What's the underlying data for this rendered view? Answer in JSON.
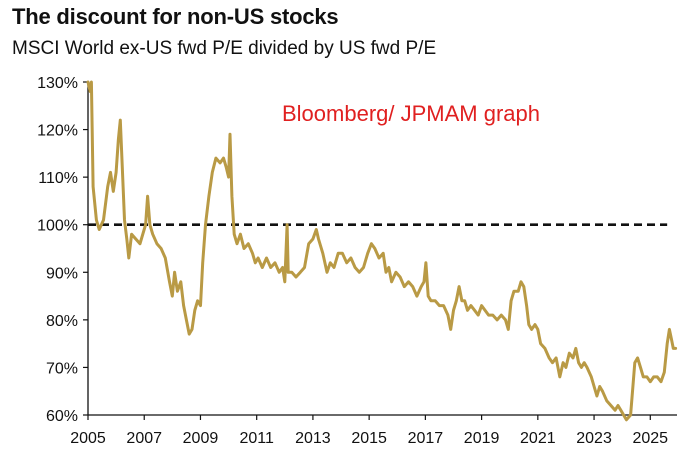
{
  "chart_data": {
    "type": "line",
    "title": "The discount for non-US stocks",
    "subtitle": "MSCI World ex-US fwd P/E divided by US fwd P/E",
    "annotation": "Bloomberg/ JPMAM graph",
    "xlabel": "",
    "ylabel": "",
    "xlim": [
      2005,
      2025.95
    ],
    "ylim": [
      60,
      130
    ],
    "x_ticks": [
      2005,
      2007,
      2009,
      2011,
      2013,
      2015,
      2017,
      2019,
      2021,
      2023,
      2025
    ],
    "y_ticks": [
      60,
      70,
      80,
      90,
      100,
      110,
      120,
      130
    ],
    "y_tick_labels": [
      "60%",
      "70%",
      "80%",
      "90%",
      "100%",
      "110%",
      "120%",
      "130%"
    ],
    "reference_line": {
      "y": 100,
      "style": "dashed"
    },
    "grid": false,
    "legend": "none",
    "colors": {
      "series": "#b99a45",
      "reference": "#111111",
      "annotation": "#e02020",
      "text": "#111111"
    },
    "series": [
      {
        "values": [
          [
            2005.0,
            130
          ],
          [
            2005.08,
            128
          ],
          [
            2005.12,
            130
          ],
          [
            2005.18,
            108
          ],
          [
            2005.3,
            101
          ],
          [
            2005.4,
            99
          ],
          [
            2005.55,
            101
          ],
          [
            2005.7,
            108
          ],
          [
            2005.8,
            111
          ],
          [
            2005.9,
            107
          ],
          [
            2006.0,
            111
          ],
          [
            2006.08,
            118
          ],
          [
            2006.15,
            122
          ],
          [
            2006.22,
            112
          ],
          [
            2006.3,
            101
          ],
          [
            2006.38,
            97
          ],
          [
            2006.45,
            93
          ],
          [
            2006.55,
            98
          ],
          [
            2006.7,
            97
          ],
          [
            2006.85,
            96
          ],
          [
            2006.95,
            98
          ],
          [
            2007.05,
            100
          ],
          [
            2007.12,
            106
          ],
          [
            2007.2,
            100
          ],
          [
            2007.3,
            98
          ],
          [
            2007.45,
            96
          ],
          [
            2007.6,
            95
          ],
          [
            2007.75,
            93
          ],
          [
            2007.9,
            88
          ],
          [
            2008.0,
            85
          ],
          [
            2008.08,
            90
          ],
          [
            2008.18,
            86
          ],
          [
            2008.3,
            88
          ],
          [
            2008.4,
            83
          ],
          [
            2008.5,
            80
          ],
          [
            2008.6,
            77
          ],
          [
            2008.7,
            78
          ],
          [
            2008.8,
            82
          ],
          [
            2008.9,
            84
          ],
          [
            2009.0,
            83
          ],
          [
            2009.08,
            92
          ],
          [
            2009.18,
            100
          ],
          [
            2009.3,
            106
          ],
          [
            2009.42,
            111
          ],
          [
            2009.55,
            114
          ],
          [
            2009.7,
            113
          ],
          [
            2009.82,
            114
          ],
          [
            2009.92,
            112
          ],
          [
            2010.0,
            110
          ],
          [
            2010.05,
            119
          ],
          [
            2010.12,
            106
          ],
          [
            2010.2,
            98
          ],
          [
            2010.3,
            96
          ],
          [
            2010.42,
            98
          ],
          [
            2010.55,
            95
          ],
          [
            2010.7,
            96
          ],
          [
            2010.85,
            94
          ],
          [
            2010.95,
            92
          ],
          [
            2011.05,
            93
          ],
          [
            2011.2,
            91
          ],
          [
            2011.35,
            93
          ],
          [
            2011.5,
            91
          ],
          [
            2011.65,
            92
          ],
          [
            2011.8,
            90
          ],
          [
            2011.92,
            91
          ],
          [
            2012.0,
            88
          ],
          [
            2012.08,
            100
          ],
          [
            2012.12,
            90
          ],
          [
            2012.25,
            90
          ],
          [
            2012.4,
            89
          ],
          [
            2012.55,
            90
          ],
          [
            2012.7,
            91
          ],
          [
            2012.85,
            96
          ],
          [
            2013.0,
            97
          ],
          [
            2013.12,
            99
          ],
          [
            2013.2,
            97
          ],
          [
            2013.35,
            94
          ],
          [
            2013.5,
            90
          ],
          [
            2013.62,
            92
          ],
          [
            2013.75,
            91
          ],
          [
            2013.9,
            94
          ],
          [
            2014.05,
            94
          ],
          [
            2014.2,
            92
          ],
          [
            2014.35,
            93
          ],
          [
            2014.5,
            91
          ],
          [
            2014.65,
            90
          ],
          [
            2014.8,
            91
          ],
          [
            2014.95,
            94
          ],
          [
            2015.08,
            96
          ],
          [
            2015.2,
            95
          ],
          [
            2015.35,
            93
          ],
          [
            2015.5,
            94
          ],
          [
            2015.6,
            90
          ],
          [
            2015.7,
            91
          ],
          [
            2015.8,
            88
          ],
          [
            2015.95,
            90
          ],
          [
            2016.1,
            89
          ],
          [
            2016.25,
            87
          ],
          [
            2016.4,
            88
          ],
          [
            2016.55,
            87
          ],
          [
            2016.7,
            85
          ],
          [
            2016.85,
            87
          ],
          [
            2016.95,
            88
          ],
          [
            2017.02,
            92
          ],
          [
            2017.1,
            85
          ],
          [
            2017.2,
            84
          ],
          [
            2017.35,
            84
          ],
          [
            2017.5,
            83
          ],
          [
            2017.65,
            83
          ],
          [
            2017.8,
            81
          ],
          [
            2017.9,
            78
          ],
          [
            2018.0,
            82
          ],
          [
            2018.1,
            84
          ],
          [
            2018.2,
            87
          ],
          [
            2018.3,
            84
          ],
          [
            2018.4,
            84
          ],
          [
            2018.5,
            82
          ],
          [
            2018.62,
            83
          ],
          [
            2018.75,
            82
          ],
          [
            2018.88,
            81
          ],
          [
            2019.0,
            83
          ],
          [
            2019.12,
            82
          ],
          [
            2019.25,
            81
          ],
          [
            2019.4,
            81
          ],
          [
            2019.55,
            80
          ],
          [
            2019.7,
            81
          ],
          [
            2019.85,
            80
          ],
          [
            2019.95,
            78
          ],
          [
            2020.05,
            84
          ],
          [
            2020.15,
            86
          ],
          [
            2020.3,
            86
          ],
          [
            2020.4,
            88
          ],
          [
            2020.5,
            87
          ],
          [
            2020.6,
            83
          ],
          [
            2020.68,
            79
          ],
          [
            2020.78,
            78
          ],
          [
            2020.9,
            79
          ],
          [
            2021.0,
            78
          ],
          [
            2021.1,
            75
          ],
          [
            2021.25,
            74
          ],
          [
            2021.4,
            72
          ],
          [
            2021.52,
            71
          ],
          [
            2021.65,
            72
          ],
          [
            2021.78,
            68
          ],
          [
            2021.9,
            71
          ],
          [
            2022.0,
            70
          ],
          [
            2022.12,
            73
          ],
          [
            2022.25,
            72
          ],
          [
            2022.35,
            74
          ],
          [
            2022.45,
            71
          ],
          [
            2022.55,
            70
          ],
          [
            2022.65,
            71
          ],
          [
            2022.75,
            70
          ],
          [
            2022.9,
            68
          ],
          [
            2023.0,
            66
          ],
          [
            2023.1,
            64
          ],
          [
            2023.2,
            66
          ],
          [
            2023.3,
            65
          ],
          [
            2023.45,
            63
          ],
          [
            2023.6,
            62
          ],
          [
            2023.75,
            61
          ],
          [
            2023.85,
            62
          ],
          [
            2023.95,
            61
          ],
          [
            2024.05,
            60
          ],
          [
            2024.15,
            59
          ],
          [
            2024.3,
            60
          ],
          [
            2024.38,
            66
          ],
          [
            2024.45,
            71
          ],
          [
            2024.55,
            72
          ],
          [
            2024.65,
            70
          ],
          [
            2024.75,
            68
          ],
          [
            2024.88,
            68
          ],
          [
            2025.0,
            67
          ],
          [
            2025.12,
            68
          ],
          [
            2025.25,
            68
          ],
          [
            2025.38,
            67
          ],
          [
            2025.5,
            69
          ],
          [
            2025.6,
            75
          ],
          [
            2025.68,
            78
          ],
          [
            2025.75,
            76
          ],
          [
            2025.82,
            74
          ],
          [
            2025.9,
            74
          ]
        ]
      }
    ]
  }
}
